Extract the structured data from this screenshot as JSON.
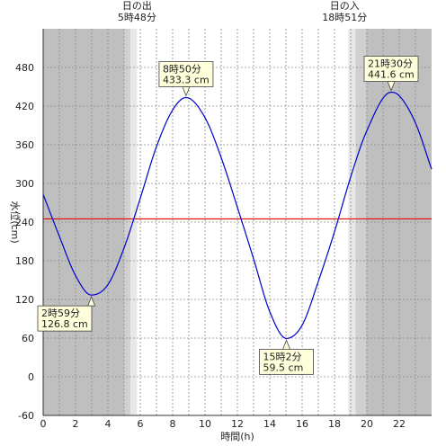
{
  "chart_data": {
    "type": "line",
    "xlabel": "時間(h)",
    "ylabel": "水位(cm)",
    "xlim": [
      0,
      24
    ],
    "ylim": [
      -60,
      540
    ],
    "xticks": [
      0,
      2,
      4,
      6,
      8,
      10,
      12,
      14,
      16,
      18,
      20,
      22
    ],
    "yticks": [
      -60,
      0,
      60,
      120,
      180,
      240,
      300,
      360,
      420,
      480
    ],
    "grid": true,
    "reference_line": {
      "value": 245,
      "color": "#e60000"
    },
    "sunrise": {
      "label": "日の出",
      "time_label": "5時48分",
      "hour": 5.8
    },
    "sunset": {
      "label": "日の入",
      "time_label": "18時51分",
      "hour": 18.85
    },
    "series": [
      {
        "color": "#0000cc",
        "x": [
          0,
          1,
          2,
          2.98,
          4,
          5,
          6,
          7,
          8,
          8.83,
          10,
          11,
          12,
          13,
          14,
          15.03,
          16,
          17,
          18,
          19,
          20,
          21.5,
          22,
          23,
          24
        ],
        "values": [
          283,
          218,
          157,
          126.8,
          143,
          200,
          277,
          357,
          414,
          433.3,
          402,
          340,
          263,
          183,
          101,
          59.5,
          80,
          148,
          225,
          310,
          382,
          441.6,
          436,
          394,
          322
        ]
      }
    ],
    "annotations": [
      {
        "time": "2時59分",
        "value": "126.8 cm",
        "x": 2.98,
        "y": 126.8
      },
      {
        "time": "8時50分",
        "value": "433.3 cm",
        "x": 8.83,
        "y": 433.3
      },
      {
        "time": "15時2分",
        "value": "59.5 cm",
        "x": 15.03,
        "y": 59.5
      },
      {
        "time": "21時30分",
        "value": "441.6 cm",
        "x": 21.5,
        "y": 441.6
      }
    ],
    "colors": {
      "night": "#bfbfbf",
      "twilight_dark": "#d0d0d0",
      "twilight_light": "#e8e8e8",
      "day": "#ffffff",
      "annotation_bg": "#ffffdc"
    }
  }
}
